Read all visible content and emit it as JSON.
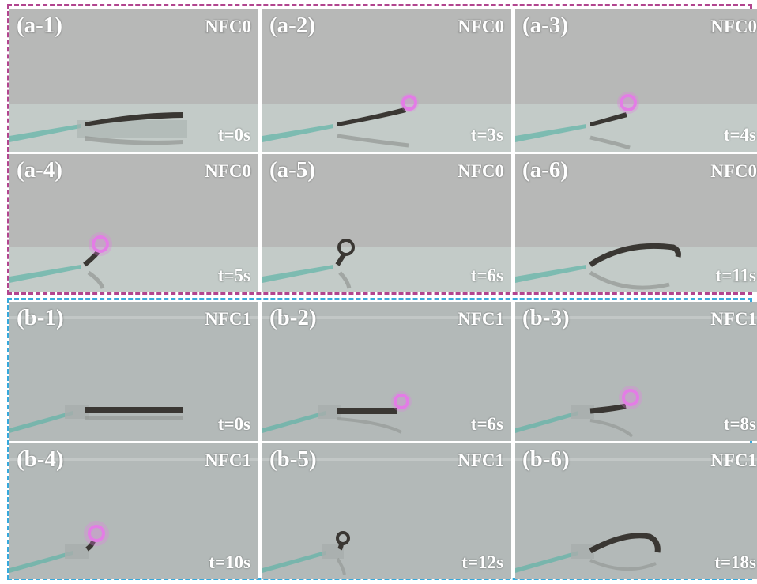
{
  "groups": [
    {
      "id": "a",
      "border_color": "#b2458f",
      "panels": [
        {
          "label": "(a-1)",
          "sample": "NFC0",
          "time": "t=0s"
        },
        {
          "label": "(a-2)",
          "sample": "NFC0",
          "time": "t=3s"
        },
        {
          "label": "(a-3)",
          "sample": "NFC0",
          "time": "t=4s"
        },
        {
          "label": "(a-4)",
          "sample": "NFC0",
          "time": "t=5s"
        },
        {
          "label": "(a-5)",
          "sample": "NFC0",
          "time": "t=6s"
        },
        {
          "label": "(a-6)",
          "sample": "NFC0",
          "time": "t=11s"
        }
      ]
    },
    {
      "id": "b",
      "border_color": "#36a9dc",
      "panels": [
        {
          "label": "(b-1)",
          "sample": "NFC1",
          "time": "t=0s"
        },
        {
          "label": "(b-2)",
          "sample": "NFC1",
          "time": "t=6s"
        },
        {
          "label": "(b-3)",
          "sample": "NFC1",
          "time": "t=8s"
        },
        {
          "label": "(b-4)",
          "sample": "NFC1",
          "time": "t=10s"
        },
        {
          "label": "(b-5)",
          "sample": "NFC1",
          "time": "t=12s"
        },
        {
          "label": "(b-6)",
          "sample": "NFC1",
          "time": "t=18s"
        }
      ]
    }
  ],
  "colors": {
    "glow": "#e37de6",
    "strip": "#3a3733",
    "glass_edge": "#5fb3a6"
  }
}
